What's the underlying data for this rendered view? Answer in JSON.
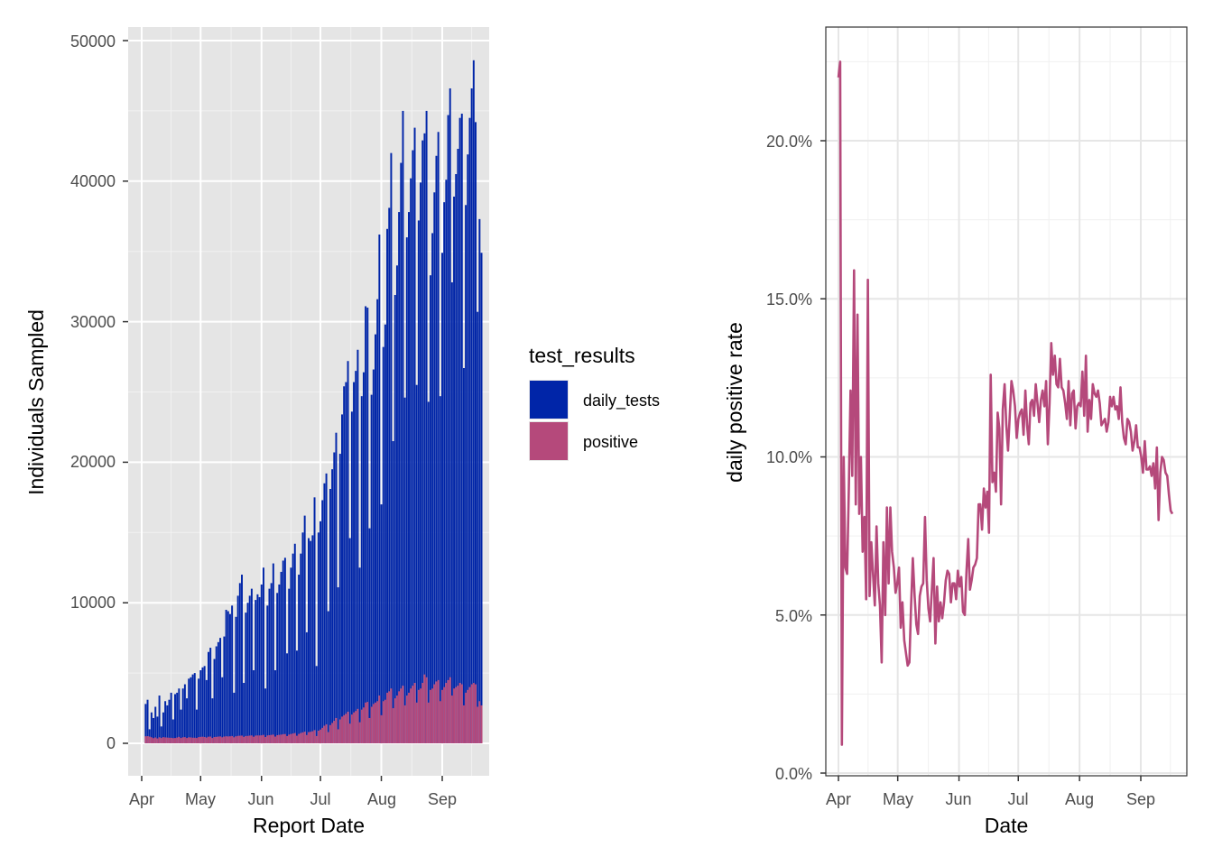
{
  "chart_data": [
    {
      "type": "bar",
      "xlabel": "Report Date",
      "ylabel": "Individuals Sampled",
      "ylim": [
        0,
        52000
      ],
      "y_ticks": [
        "0",
        "10000",
        "20000",
        "30000",
        "40000",
        "50000"
      ],
      "x_ticks": [
        "Apr",
        "May",
        "Jun",
        "Jul",
        "Aug",
        "Sep"
      ],
      "start_date": "2020-04-03",
      "grid": true,
      "background": "#e5e5e5",
      "legend": {
        "title": "test_results",
        "placement": "right",
        "entries": [
          {
            "name": "daily_tests",
            "color": "#0025a8"
          },
          {
            "name": "positive",
            "color": "#b5497b"
          }
        ]
      },
      "series": [
        {
          "name": "daily_tests",
          "color": "#0025a8",
          "values": [
            2800,
            3100,
            1000,
            2200,
            1800,
            2600,
            1900,
            3400,
            1200,
            2200,
            3000,
            2700,
            3100,
            3600,
            1700,
            3500,
            3600,
            3900,
            2400,
            3900,
            4200,
            3200,
            4600,
            4700,
            4900,
            5000,
            2400,
            4600,
            5200,
            5400,
            5500,
            4500,
            6500,
            6800,
            3200,
            6000,
            6900,
            7200,
            7500,
            4700,
            7600,
            9500,
            9400,
            9200,
            9800,
            3600,
            9000,
            10500,
            11400,
            12000,
            4300,
            9300,
            10000,
            10500,
            11000,
            5200,
            10200,
            10600,
            10400,
            11300,
            12500,
            3900,
            9800,
            11000,
            11400,
            12800,
            5200,
            10700,
            11300,
            12200,
            13000,
            13200,
            6400,
            11000,
            12500,
            13500,
            14200,
            6600,
            12000,
            13500,
            15000,
            16200,
            7900,
            14600,
            14400,
            14800,
            17500,
            5500,
            15000,
            15800,
            17300,
            18500,
            19200,
            9400,
            18100,
            19500,
            20700,
            22100,
            11100,
            20600,
            23400,
            25400,
            25700,
            27200,
            14600,
            23600,
            25700,
            26500,
            28000,
            12500,
            24700,
            26400,
            31100,
            31000,
            15300,
            24800,
            26600,
            29100,
            31600,
            36200,
            17000,
            28200,
            29800,
            36600,
            38100,
            42000,
            21500,
            31900,
            34000,
            37800,
            41300,
            45000,
            24600,
            36000,
            37800,
            40200,
            42200,
            43800,
            25500,
            37200,
            39900,
            42900,
            43400,
            45000,
            24300,
            33300,
            36300,
            39200,
            41800,
            43500,
            24700,
            34900,
            38500,
            40100,
            44700,
            46600,
            32800,
            38900,
            40500,
            42300,
            44500,
            44800,
            26700,
            38300,
            41900,
            44500,
            46600,
            48600,
            44200,
            30700,
            37300,
            34900
          ]
        },
        {
          "name": "positive",
          "color": "#b5497b",
          "values": [
            500,
            510,
            480,
            430,
            370,
            420,
            350,
            430,
            380,
            440,
            420,
            410,
            400,
            390,
            370,
            380,
            410,
            460,
            380,
            430,
            440,
            380,
            430,
            420,
            400,
            400,
            380,
            440,
            460,
            470,
            450,
            410,
            470,
            480,
            380,
            450,
            460,
            480,
            490,
            430,
            480,
            500,
            490,
            500,
            520,
            430,
            500,
            530,
            540,
            550,
            460,
            520,
            530,
            550,
            560,
            470,
            550,
            560,
            560,
            570,
            600,
            450,
            560,
            580,
            600,
            620,
            480,
            580,
            600,
            620,
            650,
            660,
            520,
            620,
            660,
            700,
            730,
            540,
            670,
            730,
            780,
            830,
            590,
            800,
            820,
            860,
            940,
            520,
            900,
            980,
            1100,
            1250,
            1350,
            800,
            1300,
            1450,
            1600,
            1800,
            1000,
            1700,
            1900,
            2000,
            2100,
            2250,
            1400,
            2050,
            2200,
            2300,
            2450,
            1500,
            2400,
            2550,
            2900,
            2950,
            1800,
            2600,
            2800,
            2900,
            3000,
            3400,
            2000,
            3000,
            3100,
            3600,
            3700,
            3900,
            2500,
            3200,
            3400,
            3700,
            3900,
            4100,
            2700,
            3400,
            3600,
            3900,
            4100,
            4300,
            2900,
            3800,
            3900,
            4300,
            4900,
            4700,
            2900,
            3800,
            3900,
            4200,
            4400,
            4500,
            3000,
            3800,
            4000,
            4300,
            4500,
            4700,
            3400,
            3900,
            4000,
            4100,
            4300,
            4200,
            2700,
            3600,
            3800,
            4000,
            4200,
            4300,
            4200,
            2600,
            3000,
            2700
          ]
        }
      ]
    },
    {
      "type": "line",
      "xlabel": "Date",
      "ylabel": "daily positive rate",
      "ylim": [
        0,
        23.5
      ],
      "y_ticks": [
        "0.0%",
        "5.0%",
        "10.0%",
        "15.0%",
        "20.0%"
      ],
      "x_ticks": [
        "Apr",
        "May",
        "Jun",
        "Jul",
        "Aug",
        "Sep"
      ],
      "start_date": "2020-04-01",
      "grid": true,
      "background": "#ffffff",
      "series": [
        {
          "name": "",
          "color": "#b5497b",
          "values": [
            22.0,
            22.5,
            0.9,
            10.0,
            6.5,
            6.3,
            9.0,
            12.1,
            9.4,
            15.9,
            8.5,
            14.5,
            8.2,
            10.0,
            7.0,
            8.1,
            5.5,
            15.6,
            5.6,
            7.3,
            6.3,
            5.3,
            7.8,
            6.0,
            5.3,
            3.5,
            7.3,
            5.0,
            8.4,
            6.0,
            8.4,
            7.0,
            6.5,
            5.7,
            6.0,
            6.5,
            4.6,
            5.4,
            4.2,
            3.8,
            3.4,
            3.5,
            5.3,
            6.8,
            5.6,
            4.7,
            4.4,
            5.6,
            5.9,
            6.0,
            8.1,
            6.1,
            5.2,
            4.8,
            5.8,
            6.8,
            4.1,
            5.9,
            4.8,
            5.4,
            4.9,
            5.4,
            6.1,
            6.4,
            6.3,
            5.4,
            6.0,
            6.0,
            5.5,
            6.4,
            5.9,
            6.2,
            5.1,
            5.0,
            6.4,
            7.4,
            5.8,
            6.1,
            6.5,
            6.6,
            6.8,
            8.5,
            8.5,
            7.7,
            9.0,
            8.4,
            8.9,
            7.6,
            12.6,
            9.2,
            9.5,
            8.9,
            11.4,
            10.9,
            8.5,
            11.5,
            12.3,
            11.0,
            10.2,
            11.3,
            12.4,
            12.1,
            11.6,
            10.6,
            11.2,
            11.4,
            11.5,
            10.7,
            12.1,
            11.0,
            10.4,
            11.7,
            11.8,
            11.3,
            12.3,
            11.7,
            11.1,
            11.8,
            12.1,
            11.6,
            12.4,
            10.4,
            11.7,
            13.6,
            12.6,
            13.2,
            12.3,
            12.2,
            13.1,
            12.2,
            12.1,
            11.7,
            11.2,
            12.4,
            11.0,
            12.0,
            12.1,
            10.9,
            11.6,
            11.7,
            11.6,
            12.7,
            11.3,
            13.2,
            10.8,
            11.8,
            11.2,
            12.3,
            12.0,
            11.9,
            12.1,
            11.7,
            11.0,
            11.1,
            11.2,
            10.8,
            11.1,
            11.9,
            11.6,
            11.9,
            11.5,
            11.6,
            11.2,
            12.2,
            11.1,
            10.6,
            10.4,
            11.2,
            11.1,
            10.8,
            10.2,
            10.5,
            11.0,
            10.3,
            10.3,
            10.0,
            9.5,
            10.5,
            9.6,
            9.6,
            9.7,
            9.4,
            9.8,
            9.0,
            10.3,
            8.0,
            9.5,
            10.0,
            9.9,
            9.5,
            9.4,
            8.8,
            8.3,
            8.2
          ]
        }
      ]
    }
  ]
}
